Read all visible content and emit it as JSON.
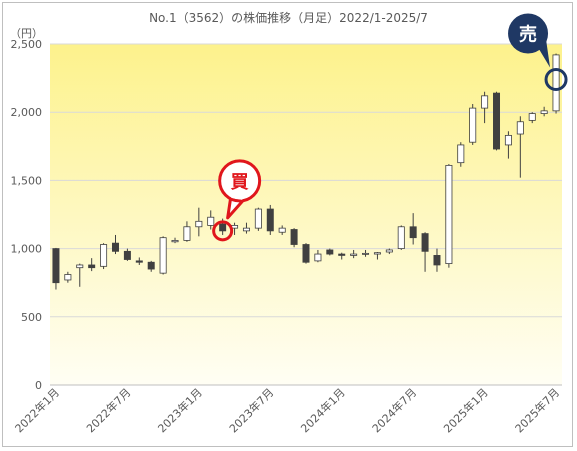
{
  "chart_data": {
    "type": "candlestick",
    "title": "No.1（3562）の株価推移（月足）2022/1-2025/7",
    "unit_label": "（円）",
    "y_ticks": [
      "0",
      "500",
      "1,000",
      "1,500",
      "2,000",
      "2,500"
    ],
    "ylim": [
      0,
      2500
    ],
    "x_tick_labels": [
      {
        "label": "2022年1月",
        "month_index": 0
      },
      {
        "label": "2022年7月",
        "month_index": 6
      },
      {
        "label": "2023年1月",
        "month_index": 12
      },
      {
        "label": "2023年7月",
        "month_index": 18
      },
      {
        "label": "2024年1月",
        "month_index": 24
      },
      {
        "label": "2024年7月",
        "month_index": 30
      },
      {
        "label": "2025年1月",
        "month_index": 36
      },
      {
        "label": "2025年7月",
        "month_index": 42
      }
    ],
    "grid": true,
    "colors": {
      "up_body": "#ffffff",
      "down_body": "#404040",
      "outline": "#404040",
      "buy_marker": "#e0161c",
      "sell_marker": "#1f3864",
      "grid": "#d9d9d9",
      "bg_top": "#fdf28c",
      "bg_bottom": "#fffef4"
    },
    "candles": [
      {
        "o": 1000,
        "h": 1005,
        "l": 700,
        "c": 750
      },
      {
        "o": 770,
        "h": 830,
        "l": 750,
        "c": 810
      },
      {
        "o": 860,
        "h": 890,
        "l": 720,
        "c": 880
      },
      {
        "o": 880,
        "h": 930,
        "l": 835,
        "c": 860
      },
      {
        "o": 870,
        "h": 1040,
        "l": 850,
        "c": 1030
      },
      {
        "o": 1040,
        "h": 1100,
        "l": 960,
        "c": 980
      },
      {
        "o": 980,
        "h": 1000,
        "l": 910,
        "c": 920
      },
      {
        "o": 910,
        "h": 935,
        "l": 880,
        "c": 900
      },
      {
        "o": 900,
        "h": 910,
        "l": 830,
        "c": 850
      },
      {
        "o": 820,
        "h": 1090,
        "l": 810,
        "c": 1080
      },
      {
        "o": 1050,
        "h": 1080,
        "l": 1040,
        "c": 1060
      },
      {
        "o": 1060,
        "h": 1200,
        "l": 1050,
        "c": 1160
      },
      {
        "o": 1160,
        "h": 1300,
        "l": 1090,
        "c": 1200
      },
      {
        "o": 1170,
        "h": 1280,
        "l": 1140,
        "c": 1230
      },
      {
        "o": 1180,
        "h": 1220,
        "l": 1100,
        "c": 1130
      },
      {
        "o": 1150,
        "h": 1190,
        "l": 1100,
        "c": 1170
      },
      {
        "o": 1130,
        "h": 1190,
        "l": 1110,
        "c": 1150
      },
      {
        "o": 1150,
        "h": 1300,
        "l": 1130,
        "c": 1290
      },
      {
        "o": 1290,
        "h": 1320,
        "l": 1100,
        "c": 1130
      },
      {
        "o": 1120,
        "h": 1170,
        "l": 1100,
        "c": 1150
      },
      {
        "o": 1140,
        "h": 1150,
        "l": 1010,
        "c": 1030
      },
      {
        "o": 1030,
        "h": 1040,
        "l": 890,
        "c": 900
      },
      {
        "o": 910,
        "h": 990,
        "l": 900,
        "c": 960
      },
      {
        "o": 990,
        "h": 1000,
        "l": 950,
        "c": 960
      },
      {
        "o": 960,
        "h": 970,
        "l": 920,
        "c": 950
      },
      {
        "o": 950,
        "h": 990,
        "l": 930,
        "c": 960
      },
      {
        "o": 960,
        "h": 990,
        "l": 940,
        "c": 965
      },
      {
        "o": 960,
        "h": 975,
        "l": 920,
        "c": 970
      },
      {
        "o": 975,
        "h": 1000,
        "l": 960,
        "c": 990
      },
      {
        "o": 1000,
        "h": 1170,
        "l": 990,
        "c": 1160
      },
      {
        "o": 1160,
        "h": 1260,
        "l": 1030,
        "c": 1080
      },
      {
        "o": 1110,
        "h": 1120,
        "l": 830,
        "c": 980
      },
      {
        "o": 950,
        "h": 1000,
        "l": 830,
        "c": 880
      },
      {
        "o": 890,
        "h": 1620,
        "l": 860,
        "c": 1610
      },
      {
        "o": 1630,
        "h": 1780,
        "l": 1600,
        "c": 1760
      },
      {
        "o": 1780,
        "h": 2060,
        "l": 1760,
        "c": 2030
      },
      {
        "o": 2030,
        "h": 2150,
        "l": 1920,
        "c": 2120
      },
      {
        "o": 2140,
        "h": 2150,
        "l": 1720,
        "c": 1730
      },
      {
        "o": 1760,
        "h": 1860,
        "l": 1660,
        "c": 1830
      },
      {
        "o": 1840,
        "h": 1970,
        "l": 1520,
        "c": 1930
      },
      {
        "o": 1940,
        "h": 2000,
        "l": 1920,
        "c": 1990
      },
      {
        "o": 1990,
        "h": 2040,
        "l": 1970,
        "c": 2010
      },
      {
        "o": 2010,
        "h": 2430,
        "l": 1990,
        "c": 2420
      }
    ],
    "buy": {
      "label": "買",
      "month_index": 14,
      "price": 1130
    },
    "sell": {
      "label": "売",
      "month_index": 42,
      "price": 2240
    }
  }
}
